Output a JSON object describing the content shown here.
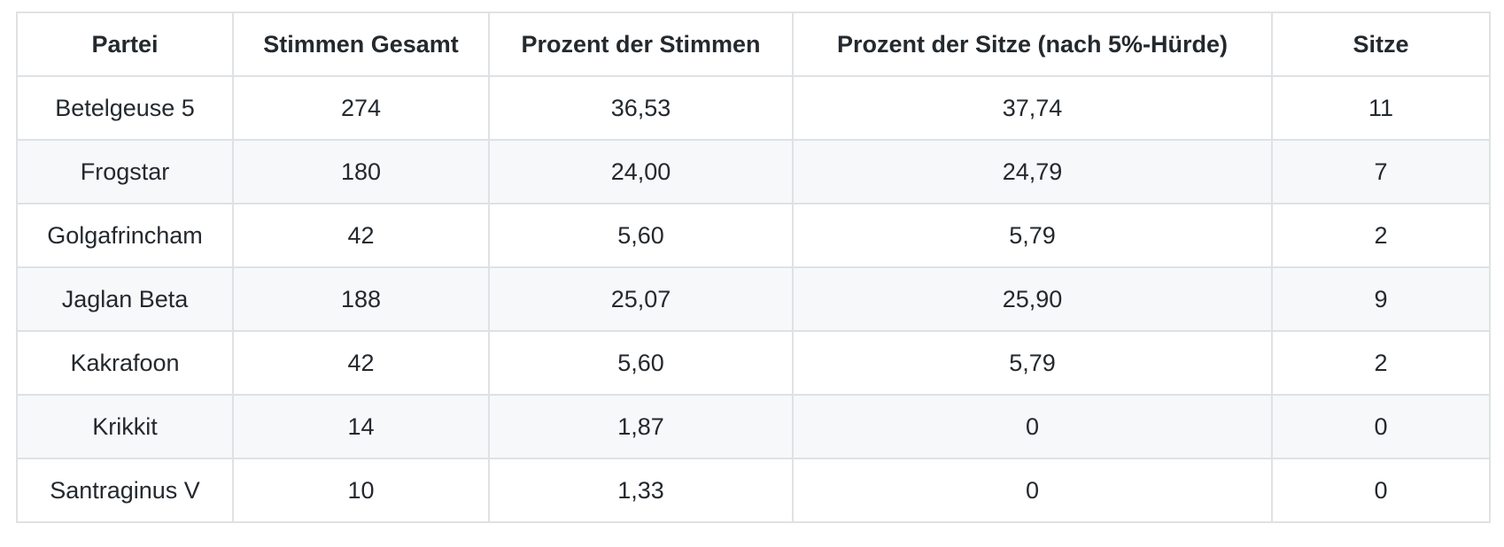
{
  "colors": {
    "text": "#24292e",
    "border": "#dfe2e5",
    "stripe": "#f6f8fa",
    "background": "#ffffff"
  },
  "table": {
    "columns": [
      "Partei",
      "Stimmen Gesamt",
      "Prozent der Stimmen",
      "Prozent der Sitze (nach 5%-Hürde)",
      "Sitze"
    ],
    "rows": [
      [
        "Betelgeuse 5",
        "274",
        "36,53",
        "37,74",
        "11"
      ],
      [
        "Frogstar",
        "180",
        "24,00",
        "24,79",
        "7"
      ],
      [
        "Golgafrincham",
        "42",
        "5,60",
        "5,79",
        "2"
      ],
      [
        "Jaglan Beta",
        "188",
        "25,07",
        "25,90",
        "9"
      ],
      [
        "Kakrafoon",
        "42",
        "5,60",
        "5,79",
        "2"
      ],
      [
        "Krikkit",
        "14",
        "1,87",
        "0",
        "0"
      ],
      [
        "Santraginus V",
        "10",
        "1,33",
        "0",
        "0"
      ]
    ]
  },
  "chart_data": {
    "type": "table",
    "title": "",
    "categories": [
      "Betelgeuse 5",
      "Frogstar",
      "Golgafrincham",
      "Jaglan Beta",
      "Kakrafoon",
      "Krikkit",
      "Santraginus V"
    ],
    "series": [
      {
        "name": "Stimmen Gesamt",
        "values": [
          274,
          180,
          42,
          188,
          42,
          14,
          10
        ]
      },
      {
        "name": "Prozent der Stimmen",
        "values": [
          36.53,
          24.0,
          5.6,
          25.07,
          5.6,
          1.87,
          1.33
        ]
      },
      {
        "name": "Prozent der Sitze (nach 5%-Hürde)",
        "values": [
          37.74,
          24.79,
          5.79,
          25.9,
          5.79,
          0,
          0
        ]
      },
      {
        "name": "Sitze",
        "values": [
          11,
          7,
          2,
          9,
          2,
          0,
          0
        ]
      }
    ]
  }
}
